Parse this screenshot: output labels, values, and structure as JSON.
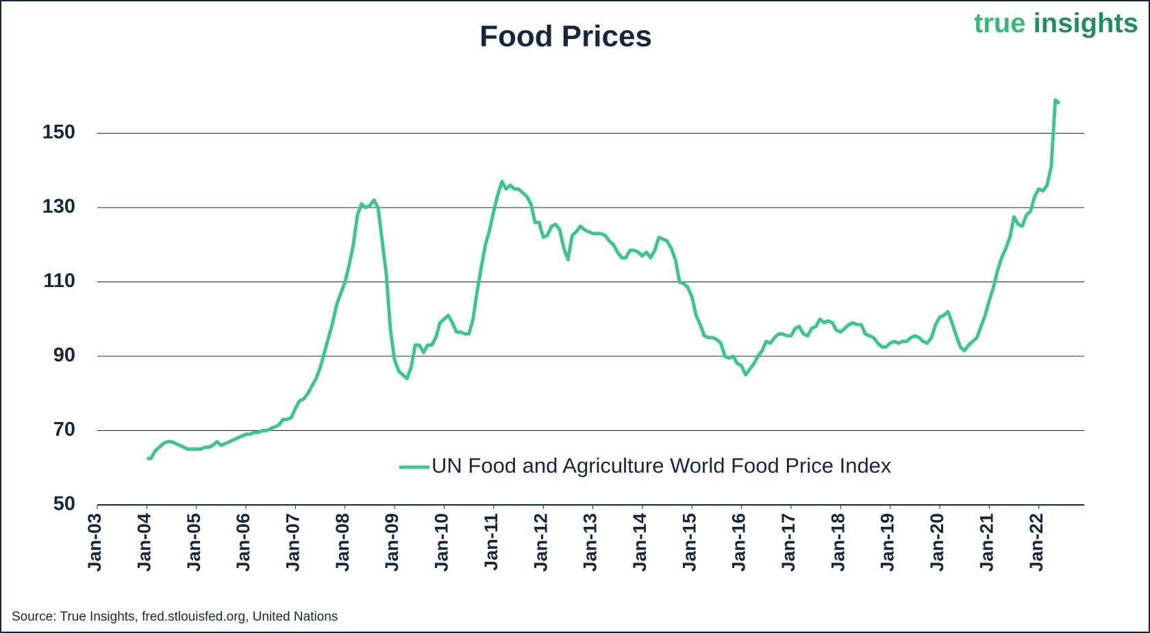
{
  "chart_data": {
    "type": "line",
    "title": "Food Prices",
    "logo": [
      "true",
      "insights"
    ],
    "source": "Source: True Insights, fred.stlouisfed.org, United Nations",
    "legend": "bottom-right",
    "grid": true,
    "xlim": [
      "2003-01",
      "2022-12"
    ],
    "xticks": [
      {
        "value": "2003-01",
        "label": "Jan-03"
      },
      {
        "value": "2004-01",
        "label": "Jan-04"
      },
      {
        "value": "2005-01",
        "label": "Jan-05"
      },
      {
        "value": "2006-01",
        "label": "Jan-06"
      },
      {
        "value": "2007-01",
        "label": "Jan-07"
      },
      {
        "value": "2008-01",
        "label": "Jan-08"
      },
      {
        "value": "2009-01",
        "label": "Jan-09"
      },
      {
        "value": "2010-01",
        "label": "Jan-10"
      },
      {
        "value": "2011-01",
        "label": "Jan-11"
      },
      {
        "value": "2012-01",
        "label": "Jan-12"
      },
      {
        "value": "2013-01",
        "label": "Jan-13"
      },
      {
        "value": "2014-01",
        "label": "Jan-14"
      },
      {
        "value": "2015-01",
        "label": "Jan-15"
      },
      {
        "value": "2016-01",
        "label": "Jan-16"
      },
      {
        "value": "2017-01",
        "label": "Jan-17"
      },
      {
        "value": "2018-01",
        "label": "Jan-18"
      },
      {
        "value": "2019-01",
        "label": "Jan-19"
      },
      {
        "value": "2020-01",
        "label": "Jan-20"
      },
      {
        "value": "2021-01",
        "label": "Jan-21"
      },
      {
        "value": "2022-01",
        "label": "Jan-22"
      }
    ],
    "ylim": [
      50,
      170
    ],
    "yticks": [
      50,
      70,
      90,
      110,
      130,
      150
    ],
    "x": [
      "2004-01",
      "2004-02",
      "2004-03",
      "2004-04",
      "2004-05",
      "2004-06",
      "2004-07",
      "2004-08",
      "2004-09",
      "2004-10",
      "2004-11",
      "2004-12",
      "2005-01",
      "2005-02",
      "2005-03",
      "2005-04",
      "2005-05",
      "2005-06",
      "2005-07",
      "2005-08",
      "2005-09",
      "2005-10",
      "2005-11",
      "2005-12",
      "2006-01",
      "2006-02",
      "2006-03",
      "2006-04",
      "2006-05",
      "2006-06",
      "2006-07",
      "2006-08",
      "2006-09",
      "2006-10",
      "2006-11",
      "2006-12",
      "2007-01",
      "2007-02",
      "2007-03",
      "2007-04",
      "2007-05",
      "2007-06",
      "2007-07",
      "2007-08",
      "2007-09",
      "2007-10",
      "2007-11",
      "2007-12",
      "2008-01",
      "2008-02",
      "2008-03",
      "2008-04",
      "2008-05",
      "2008-06",
      "2008-07",
      "2008-08",
      "2008-09",
      "2008-10",
      "2008-11",
      "2008-12",
      "2009-01",
      "2009-02",
      "2009-03",
      "2009-04",
      "2009-05",
      "2009-06",
      "2009-07",
      "2009-08",
      "2009-09",
      "2009-10",
      "2009-11",
      "2009-12",
      "2010-01",
      "2010-02",
      "2010-03",
      "2010-04",
      "2010-05",
      "2010-06",
      "2010-07",
      "2010-08",
      "2010-09",
      "2010-10",
      "2010-11",
      "2010-12",
      "2011-01",
      "2011-02",
      "2011-03",
      "2011-04",
      "2011-05",
      "2011-06",
      "2011-07",
      "2011-08",
      "2011-09",
      "2011-10",
      "2011-11",
      "2011-12",
      "2012-01",
      "2012-02",
      "2012-03",
      "2012-04",
      "2012-05",
      "2012-06",
      "2012-07",
      "2012-08",
      "2012-09",
      "2012-10",
      "2012-11",
      "2012-12",
      "2013-01",
      "2013-02",
      "2013-03",
      "2013-04",
      "2013-05",
      "2013-06",
      "2013-07",
      "2013-08",
      "2013-09",
      "2013-10",
      "2013-11",
      "2013-12",
      "2014-01",
      "2014-02",
      "2014-03",
      "2014-04",
      "2014-05",
      "2014-06",
      "2014-07",
      "2014-08",
      "2014-09",
      "2014-10",
      "2014-11",
      "2014-12",
      "2015-01",
      "2015-02",
      "2015-03",
      "2015-04",
      "2015-05",
      "2015-06",
      "2015-07",
      "2015-08",
      "2015-09",
      "2015-10",
      "2015-11",
      "2015-12",
      "2016-01",
      "2016-02",
      "2016-03",
      "2016-04",
      "2016-05",
      "2016-06",
      "2016-07",
      "2016-08",
      "2016-09",
      "2016-10",
      "2016-11",
      "2016-12",
      "2017-01",
      "2017-02",
      "2017-03",
      "2017-04",
      "2017-05",
      "2017-06",
      "2017-07",
      "2017-08",
      "2017-09",
      "2017-10",
      "2017-11",
      "2017-12",
      "2018-01",
      "2018-02",
      "2018-03",
      "2018-04",
      "2018-05",
      "2018-06",
      "2018-07",
      "2018-08",
      "2018-09",
      "2018-10",
      "2018-11",
      "2018-12",
      "2019-01",
      "2019-02",
      "2019-03",
      "2019-04",
      "2019-05",
      "2019-06",
      "2019-07",
      "2019-08",
      "2019-09",
      "2019-10",
      "2019-11",
      "2019-12",
      "2020-01",
      "2020-02",
      "2020-03",
      "2020-04",
      "2020-05",
      "2020-06",
      "2020-07",
      "2020-08",
      "2020-09",
      "2020-10",
      "2020-11",
      "2020-12",
      "2021-01",
      "2021-02",
      "2021-03",
      "2021-04",
      "2021-05",
      "2021-06",
      "2021-07",
      "2021-08",
      "2021-09",
      "2021-10",
      "2021-11",
      "2021-12",
      "2022-01",
      "2022-02",
      "2022-03",
      "2022-04",
      "2022-05",
      "2022-06"
    ],
    "series": [
      {
        "name": "UN Food and Agriculture World Food Price Index",
        "color": "#3cc68a",
        "values": [
          62.5,
          62.5,
          64.5,
          65.5,
          66.5,
          67,
          67,
          66.5,
          66,
          65.5,
          65,
          65,
          65,
          65,
          65.5,
          65.5,
          66,
          67,
          66,
          66.5,
          67,
          67.5,
          68,
          68.5,
          69,
          69,
          69.5,
          69.5,
          70,
          70,
          70.5,
          71,
          71.5,
          73,
          73,
          73.5,
          76,
          78,
          78.5,
          80,
          82,
          84,
          87,
          91,
          95,
          99,
          104,
          107,
          110,
          114.5,
          120,
          128,
          131,
          130,
          130.5,
          132,
          130,
          121,
          112,
          97,
          89,
          86,
          85,
          84,
          87,
          93,
          93,
          91,
          93,
          93,
          95,
          99,
          100,
          101,
          99,
          96.5,
          96.5,
          96,
          96,
          100,
          107.5,
          114,
          120,
          124,
          129,
          133.5,
          137,
          135,
          136,
          135,
          135,
          134,
          133,
          131,
          126,
          126,
          122,
          122.5,
          125,
          125.5,
          124,
          119,
          116,
          122.5,
          123.5,
          125,
          124,
          123.5,
          123,
          123,
          123,
          122.5,
          121,
          120,
          118,
          116.5,
          116.5,
          118.5,
          118.5,
          118,
          117,
          118,
          116.5,
          118.5,
          122,
          121.5,
          121,
          119,
          116,
          110,
          109.5,
          108.5,
          106,
          101,
          98.5,
          95.5,
          95,
          95,
          94.5,
          93.5,
          90,
          89.5,
          90,
          88,
          87.5,
          85,
          86.5,
          88,
          90,
          91.5,
          94,
          93.5,
          95,
          96,
          96,
          95.5,
          95.5,
          97.5,
          98,
          96,
          95.5,
          97.5,
          98,
          100,
          99,
          99.5,
          99,
          97,
          96.5,
          97.5,
          98.5,
          99,
          98.5,
          98.5,
          96,
          95.5,
          95,
          93.5,
          92.5,
          92.5,
          93.5,
          94,
          93.5,
          94,
          94,
          95,
          95.5,
          95,
          94,
          93.5,
          95,
          98.5,
          100.5,
          101,
          102,
          99,
          95.5,
          92.5,
          91.5,
          93,
          94,
          95,
          98,
          101,
          105,
          108.5,
          113,
          116.5,
          119,
          122,
          127.5,
          125.5,
          125,
          128,
          129,
          133,
          135,
          134.5,
          136,
          141,
          159,
          158
        ]
      }
    ]
  }
}
